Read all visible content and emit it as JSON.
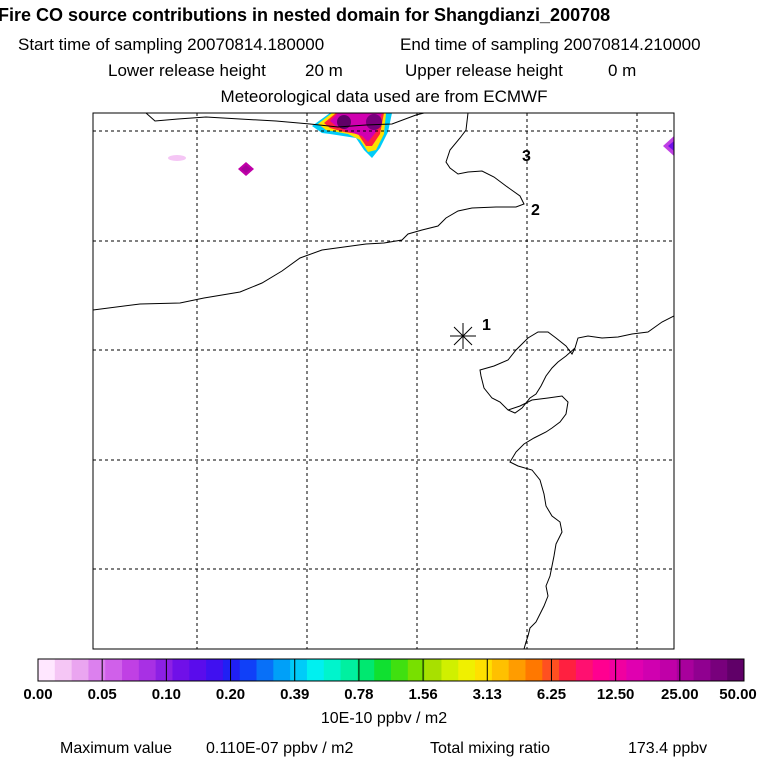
{
  "header": {
    "title": "Fire CO source contributions in nested domain for Shangdianzi_200708",
    "start_label": "Start time of sampling 20070814.180000",
    "end_label": "End time of sampling 20070814.210000",
    "lower_label": "Lower release height",
    "lower_value": "20 m",
    "upper_label": "Upper release height",
    "upper_value": "0 m",
    "met_label": "Meteorological data used are from ECMWF"
  },
  "map": {
    "release_points": [
      "1",
      "2",
      "3"
    ]
  },
  "colorbar": {
    "tick_labels": [
      "0.00",
      "0.05",
      "0.10",
      "0.20",
      "0.39",
      "0.78",
      "1.56",
      "3.13",
      "6.25",
      "12.50",
      "25.00",
      "50.00"
    ],
    "colors": [
      "#ffe7ff",
      "#f5c6f5",
      "#eaa5f0",
      "#dc80ee",
      "#d060ea",
      "#c040e4",
      "#a830e4",
      "#8c20e4",
      "#7010e8",
      "#5a0cec",
      "#4010f0",
      "#2020f4",
      "#1040f8",
      "#0870f8",
      "#00a0f8",
      "#00ccf8",
      "#00f0f0",
      "#00f4cc",
      "#00f0a0",
      "#00e870",
      "#10e030",
      "#40e010",
      "#78e000",
      "#a8e000",
      "#d0f000",
      "#f0f000",
      "#ffe000",
      "#ffc000",
      "#ff9c00",
      "#ff7800",
      "#ff5020",
      "#ff2040",
      "#ff1070",
      "#ff0090",
      "#f000a0",
      "#e000b0",
      "#d000b0",
      "#c000a8",
      "#a8009c",
      "#900090",
      "#78007c",
      "#600068"
    ],
    "unit": "10E-10 ppbv / m2"
  },
  "footer": {
    "max_label": "Maximum value",
    "max_value": "0.110E-07 ppbv / m2",
    "total_label": "Total mixing ratio",
    "total_value": "173.4 ppbv"
  }
}
